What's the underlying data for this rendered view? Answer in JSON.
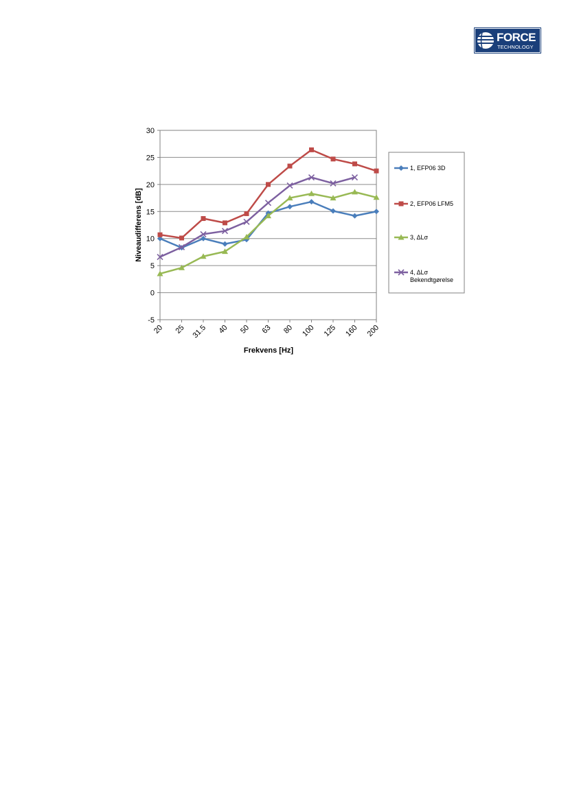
{
  "logo": {
    "line1": "FORCE",
    "line2": "TECHNOLOGY",
    "color": "#1a3f7a"
  },
  "chart_data": {
    "type": "line",
    "categories": [
      "20",
      "25",
      "31.5",
      "40",
      "50",
      "63",
      "80",
      "100",
      "125",
      "160",
      "200"
    ],
    "xlabel": "Frekvens [Hz]",
    "ylabel": "Niveaudifferens [dB]",
    "ylim": [
      -5,
      30
    ],
    "yticks": [
      -5,
      0,
      5,
      10,
      15,
      20,
      25,
      30
    ],
    "grid": true,
    "legend_position": "right",
    "series": [
      {
        "name": "1, EFP06 3D",
        "color": "#4a7ebb",
        "marker": "diamond",
        "values": [
          10.0,
          8.3,
          10.0,
          9.0,
          9.8,
          14.7,
          15.9,
          16.8,
          15.1,
          14.2,
          15.0
        ]
      },
      {
        "name": "2, EFP06 LFM5",
        "color": "#be4b48",
        "marker": "square",
        "values": [
          10.7,
          10.1,
          13.7,
          12.9,
          14.6,
          20.0,
          23.4,
          26.4,
          24.7,
          23.8,
          22.5
        ]
      },
      {
        "name": "3, ΔLσ",
        "color": "#98b954",
        "marker": "triangle",
        "values": [
          3.5,
          4.6,
          6.7,
          7.6,
          10.3,
          14.2,
          17.5,
          18.3,
          17.5,
          18.6,
          17.6
        ]
      },
      {
        "name": "4, ΔLσ",
        "name_line2": "Bekendtgørelse",
        "color": "#7d60a0",
        "marker": "x",
        "values": [
          6.6,
          8.4,
          10.8,
          11.4,
          13.1,
          16.6,
          19.8,
          21.3,
          20.2,
          21.3,
          null
        ]
      }
    ]
  }
}
